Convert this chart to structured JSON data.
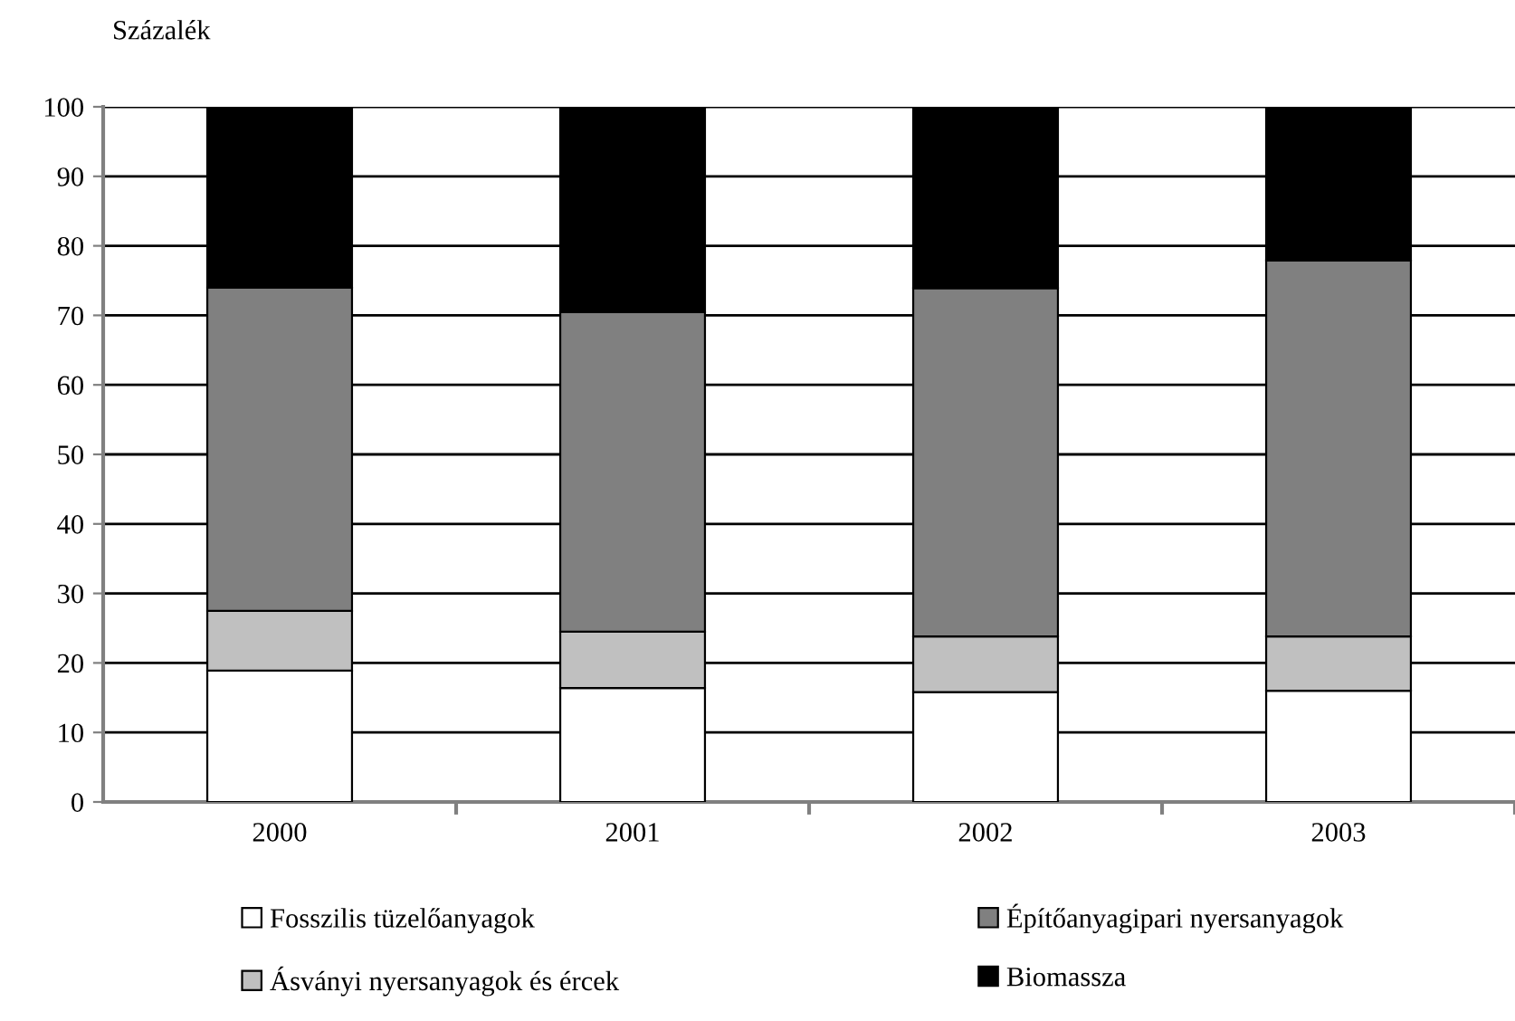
{
  "chart_data": {
    "type": "bar",
    "stacked": true,
    "ylabel": "Százalék",
    "categories": [
      "2000",
      "2001",
      "2002",
      "2003"
    ],
    "series": [
      {
        "name": "Fosszilis tüzelőanyagok",
        "color": "#ffffff",
        "values": [
          18.9,
          16.4,
          15.8,
          16.0
        ]
      },
      {
        "name": "Ásványi nyersanyagok és ércek",
        "color": "#c0c0c0",
        "values": [
          8.6,
          8.1,
          8.0,
          7.8
        ]
      },
      {
        "name": "Építőanyagipari nyersanyagok",
        "color": "#808080",
        "values": [
          46.5,
          46.0,
          50.1,
          54.1
        ]
      },
      {
        "name": "Biomassza",
        "color": "#000000",
        "values": [
          26.0,
          29.5,
          26.1,
          22.1
        ]
      }
    ],
    "ylim": [
      0,
      100
    ],
    "yticks": [
      0,
      10,
      20,
      30,
      40,
      50,
      60,
      70,
      80,
      90,
      100
    ],
    "grid": "y",
    "legend": "bottom"
  }
}
